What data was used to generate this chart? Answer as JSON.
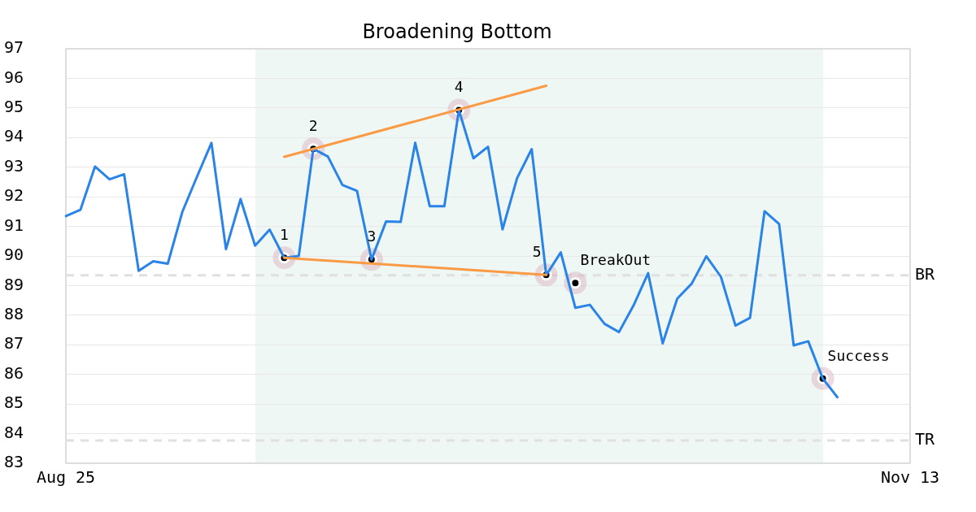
{
  "chart_data": {
    "type": "line",
    "title": "Broadening Bottom",
    "categories": [
      "Aug 25",
      null,
      null,
      null,
      null,
      null,
      null,
      null,
      null,
      null,
      null,
      null,
      null,
      null,
      null,
      null,
      null,
      null,
      null,
      null,
      null,
      null,
      null,
      null,
      null,
      null,
      null,
      null,
      null,
      null,
      null,
      null,
      null,
      null,
      null,
      null,
      null,
      null,
      null,
      null,
      null,
      null,
      null,
      null,
      null,
      null,
      null,
      null,
      null,
      null,
      null,
      null,
      null,
      null,
      null,
      null,
      null,
      null,
      "Nov 13"
    ],
    "series": [
      {
        "color": "#2a84e8",
        "values": [
          91.35,
          91.56,
          93.02,
          92.59,
          92.76,
          89.5,
          89.82,
          89.74,
          91.49,
          92.67,
          93.82,
          90.23,
          91.92,
          90.35,
          90.89,
          89.94,
          90.0,
          93.62,
          93.36,
          92.4,
          92.2,
          89.88,
          91.17,
          91.15,
          93.82,
          91.68,
          91.68,
          94.93,
          93.3,
          93.69,
          90.9,
          92.63,
          93.61,
          89.36,
          90.12,
          88.25,
          88.35,
          87.71,
          87.43,
          88.33,
          89.42,
          87.05,
          88.56,
          89.07,
          89.99,
          89.3,
          87.65,
          87.91,
          91.51,
          91.08,
          86.98,
          87.12,
          85.86,
          85.23,
          null,
          null,
          null,
          null,
          null
        ]
      },
      {
        "type": "line",
        "color": "#fa9a45",
        "values": [
          null,
          null,
          null,
          null,
          null,
          null,
          null,
          null,
          null,
          null,
          null,
          null,
          null,
          null,
          null,
          93.35,
          null,
          null,
          null,
          null,
          null,
          null,
          null,
          null,
          null,
          null,
          null,
          null,
          null,
          null,
          null,
          null,
          null,
          95.75,
          null,
          null,
          null,
          null,
          null,
          null,
          null,
          null,
          null,
          null,
          null,
          null,
          null,
          null,
          null,
          null,
          null,
          null,
          null,
          null,
          null,
          null,
          null,
          null,
          null
        ]
      },
      {
        "type": "line",
        "color": "#fa9a45",
        "values": [
          null,
          null,
          null,
          null,
          null,
          null,
          null,
          null,
          null,
          null,
          null,
          null,
          null,
          null,
          null,
          89.94,
          null,
          null,
          null,
          null,
          null,
          null,
          null,
          null,
          null,
          null,
          null,
          null,
          null,
          null,
          null,
          null,
          null,
          89.36,
          null,
          null,
          null,
          null,
          null,
          null,
          null,
          null,
          null,
          null,
          null,
          null,
          null,
          null,
          null,
          null,
          null,
          null,
          null,
          null,
          null,
          null,
          null,
          null,
          null
        ]
      },
      {
        "type": "scatter",
        "name": "1",
        "color": "#000000",
        "marker": "circle",
        "values": [
          null,
          null,
          null,
          null,
          null,
          null,
          null,
          null,
          null,
          null,
          null,
          null,
          null,
          null,
          null,
          89.94,
          null,
          null,
          null,
          null,
          null,
          null,
          null,
          null,
          null,
          null,
          null,
          null,
          null,
          null,
          null,
          null,
          null,
          null,
          null,
          null,
          null,
          null,
          null,
          null,
          null,
          null,
          null,
          null,
          null,
          null,
          null,
          null,
          null,
          null,
          null,
          null,
          null,
          null,
          null,
          null,
          null,
          null,
          null
        ]
      },
      {
        "type": "scatter",
        "name": "2",
        "color": "#000000",
        "marker": "circle",
        "values": [
          null,
          null,
          null,
          null,
          null,
          null,
          null,
          null,
          null,
          null,
          null,
          null,
          null,
          null,
          null,
          null,
          null,
          93.62,
          null,
          null,
          null,
          null,
          null,
          null,
          null,
          null,
          null,
          null,
          null,
          null,
          null,
          null,
          null,
          null,
          null,
          null,
          null,
          null,
          null,
          null,
          null,
          null,
          null,
          null,
          null,
          null,
          null,
          null,
          null,
          null,
          null,
          null,
          null,
          null,
          null,
          null,
          null,
          null,
          null
        ]
      },
      {
        "type": "scatter",
        "name": "3",
        "color": "#000000",
        "marker": "circle",
        "values": [
          null,
          null,
          null,
          null,
          null,
          null,
          null,
          null,
          null,
          null,
          null,
          null,
          null,
          null,
          null,
          null,
          null,
          null,
          null,
          null,
          null,
          89.88,
          null,
          null,
          null,
          null,
          null,
          null,
          null,
          null,
          null,
          null,
          null,
          null,
          null,
          null,
          null,
          null,
          null,
          null,
          null,
          null,
          null,
          null,
          null,
          null,
          null,
          null,
          null,
          null,
          null,
          null,
          null,
          null,
          null,
          null,
          null,
          null,
          null
        ]
      },
      {
        "type": "scatter",
        "name": "4",
        "color": "#000000",
        "marker": "circle",
        "values": [
          null,
          null,
          null,
          null,
          null,
          null,
          null,
          null,
          null,
          null,
          null,
          null,
          null,
          null,
          null,
          null,
          null,
          null,
          null,
          null,
          null,
          null,
          null,
          null,
          null,
          null,
          null,
          94.93,
          null,
          null,
          null,
          null,
          null,
          null,
          null,
          null,
          null,
          null,
          null,
          null,
          null,
          null,
          null,
          null,
          null,
          null,
          null,
          null,
          null,
          null,
          null,
          null,
          null,
          null,
          null,
          null,
          null,
          null,
          null
        ]
      },
      {
        "type": "scatter",
        "name": "5",
        "color": "#000000",
        "marker": "circle",
        "values": [
          null,
          null,
          null,
          null,
          null,
          null,
          null,
          null,
          null,
          null,
          null,
          null,
          null,
          null,
          null,
          null,
          null,
          null,
          null,
          null,
          null,
          null,
          null,
          null,
          null,
          null,
          null,
          null,
          null,
          null,
          null,
          null,
          null,
          89.36,
          null,
          null,
          null,
          null,
          null,
          null,
          null,
          null,
          null,
          null,
          null,
          null,
          null,
          null,
          null,
          null,
          null,
          null,
          null,
          null,
          null,
          null,
          null,
          null,
          null
        ]
      },
      {
        "type": "scatter",
        "name": "BreakOut",
        "color": "#000000",
        "marker": "circle",
        "values": [
          null,
          null,
          null,
          null,
          null,
          null,
          null,
          null,
          null,
          null,
          null,
          null,
          null,
          null,
          null,
          null,
          null,
          null,
          null,
          null,
          null,
          null,
          null,
          null,
          null,
          null,
          null,
          null,
          null,
          null,
          null,
          null,
          null,
          null,
          null,
          89.09,
          null,
          null,
          null,
          null,
          null,
          null,
          null,
          null,
          null,
          null,
          null,
          null,
          null,
          null,
          null,
          null,
          null,
          null,
          null,
          null,
          null,
          null,
          null
        ]
      },
      {
        "type": "scatter",
        "name": "Success",
        "color": "#000000",
        "marker": "circle",
        "values": [
          null,
          null,
          null,
          null,
          null,
          null,
          null,
          null,
          null,
          null,
          null,
          null,
          null,
          null,
          null,
          null,
          null,
          null,
          null,
          null,
          null,
          null,
          null,
          null,
          null,
          null,
          null,
          null,
          null,
          null,
          null,
          null,
          null,
          null,
          null,
          null,
          null,
          null,
          null,
          null,
          null,
          null,
          null,
          null,
          null,
          null,
          null,
          null,
          null,
          null,
          null,
          null,
          85.86,
          null,
          null,
          null,
          null,
          null,
          null
        ]
      }
    ],
    "ref_lines": [
      {
        "axis": "y",
        "value": 89.35,
        "label": "BR",
        "color": "#e0e0e0",
        "line_style": "dashed"
      },
      {
        "axis": "y",
        "value": 83.77,
        "label": "TR",
        "color": "#e0e0e0",
        "line_style": "dashed"
      }
    ],
    "ylim": [
      83,
      97
    ],
    "yticks": [
      83,
      84,
      85,
      86,
      87,
      88,
      89,
      90,
      91,
      92,
      93,
      94,
      95,
      96,
      97
    ],
    "grid": "y"
  }
}
